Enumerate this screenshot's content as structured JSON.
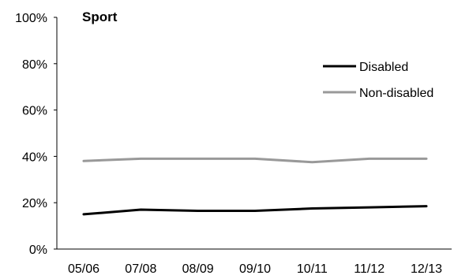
{
  "chart_data": {
    "type": "line",
    "title": "Sport",
    "xlabel": "",
    "ylabel": "",
    "categories": [
      "05/06",
      "07/08",
      "08/09",
      "09/10",
      "10/11",
      "11/12",
      "12/13"
    ],
    "y_ticks": [
      "0%",
      "20%",
      "40%",
      "60%",
      "80%",
      "100%"
    ],
    "ylim": [
      0,
      100
    ],
    "grid": false,
    "legend_position": "top-right",
    "series": [
      {
        "name": "Disabled",
        "color": "#000000",
        "values": [
          15,
          17,
          16.5,
          16.5,
          17.5,
          18,
          18.5
        ]
      },
      {
        "name": "Non-disabled",
        "color": "#999999",
        "values": [
          38,
          39,
          39,
          39,
          37.5,
          39,
          39
        ]
      }
    ]
  }
}
